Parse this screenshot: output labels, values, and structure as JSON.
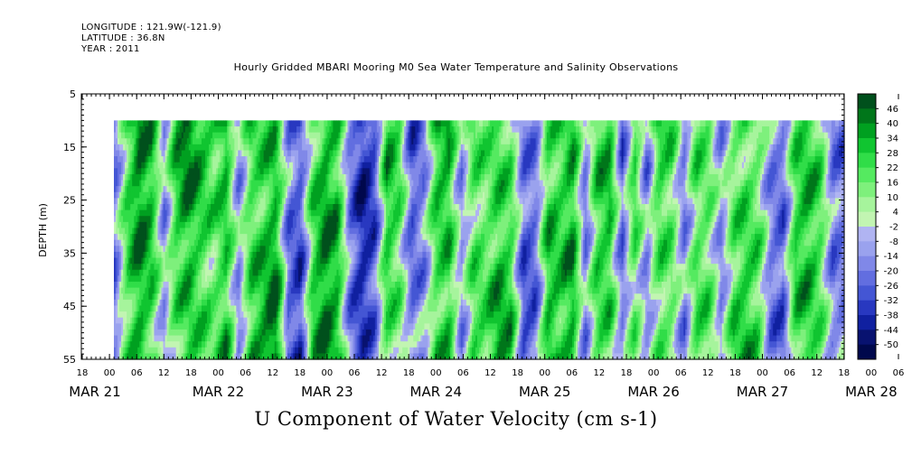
{
  "header": {
    "longitude": "LONGITUDE : 121.9W(-121.9)",
    "latitude": "LATITUDE : 36.8N",
    "year": "YEAR : 2011"
  },
  "chart_data": {
    "type": "heatmap",
    "title": "Hourly Gridded MBARI Mooring M0 Sea Water Temperature and Salinity Observations",
    "xlabel": "U Component of Water Velocity (cm s-1)",
    "ylabel": "DEPTH (m)",
    "y_ticks": [
      5,
      15,
      25,
      35,
      45,
      55
    ],
    "ylim": [
      5,
      55
    ],
    "y_inverted": true,
    "data_depth_range": [
      10,
      55
    ],
    "x_hour_ticks": [
      "18",
      "00",
      "06",
      "12",
      "18",
      "00",
      "06",
      "12",
      "18",
      "00",
      "06",
      "12",
      "18",
      "00",
      "06",
      "12",
      "18",
      "00",
      "06",
      "12",
      "18",
      "00",
      "06",
      "12",
      "18",
      "00",
      "06",
      "12",
      "18",
      "00",
      "06",
      "12"
    ],
    "x_day_labels": [
      "MAR 21",
      "MAR 22",
      "MAR 23",
      "MAR 24",
      "MAR 25",
      "MAR 26",
      "MAR 27",
      "MAR 28"
    ],
    "colorbar_levels": [
      "46",
      "40",
      "34",
      "28",
      "22",
      "16",
      "10",
      "4",
      "-2",
      "-8",
      "-14",
      "-20",
      "-26",
      "-32",
      "-38",
      "-44",
      "-50"
    ],
    "colorbar_colors": [
      "#00501c",
      "#00761a",
      "#00a020",
      "#10c530",
      "#30dd48",
      "#55ea60",
      "#7ef07c",
      "#a6f49c",
      "#c2f5b2",
      "#b0b4f2",
      "#9aa2ee",
      "#8088e8",
      "#626ee0",
      "#4456d4",
      "#2838c0",
      "#1020a0",
      "#081270",
      "#00084c"
    ],
    "stripe_signs": [
      -1,
      1,
      1,
      1,
      -1,
      1,
      1,
      1,
      1,
      1,
      -1,
      1,
      1,
      1,
      -1,
      -1,
      1,
      1,
      1,
      -1,
      -1,
      -1,
      1,
      1,
      -1,
      -1,
      1,
      1,
      -1,
      1,
      1,
      1,
      1,
      -1,
      -1,
      1,
      1,
      1,
      -1,
      1,
      1,
      -1,
      1,
      -1,
      1,
      1,
      -1,
      1,
      1,
      -1,
      1,
      1,
      1,
      -1,
      -1,
      1,
      1,
      1,
      -1
    ],
    "stripe_magnitudes": [
      0.3,
      0.4,
      0.8,
      0.6,
      0.2,
      0.6,
      0.9,
      0.7,
      0.5,
      0.9,
      0.3,
      0.7,
      0.8,
      1.0,
      0.4,
      0.6,
      0.5,
      0.8,
      0.6,
      0.3,
      0.7,
      0.5,
      0.6,
      0.4,
      0.5,
      0.3,
      0.7,
      0.9,
      0.3,
      0.6,
      0.5,
      0.8,
      0.6,
      0.5,
      0.4,
      0.6,
      0.5,
      0.7,
      0.3,
      0.5,
      0.6,
      0.4,
      0.5,
      0.3,
      0.6,
      0.5,
      0.4,
      0.6,
      0.5,
      0.3,
      0.5,
      0.6,
      0.4,
      0.3,
      0.4,
      0.5,
      0.6,
      0.4,
      0.3
    ]
  }
}
